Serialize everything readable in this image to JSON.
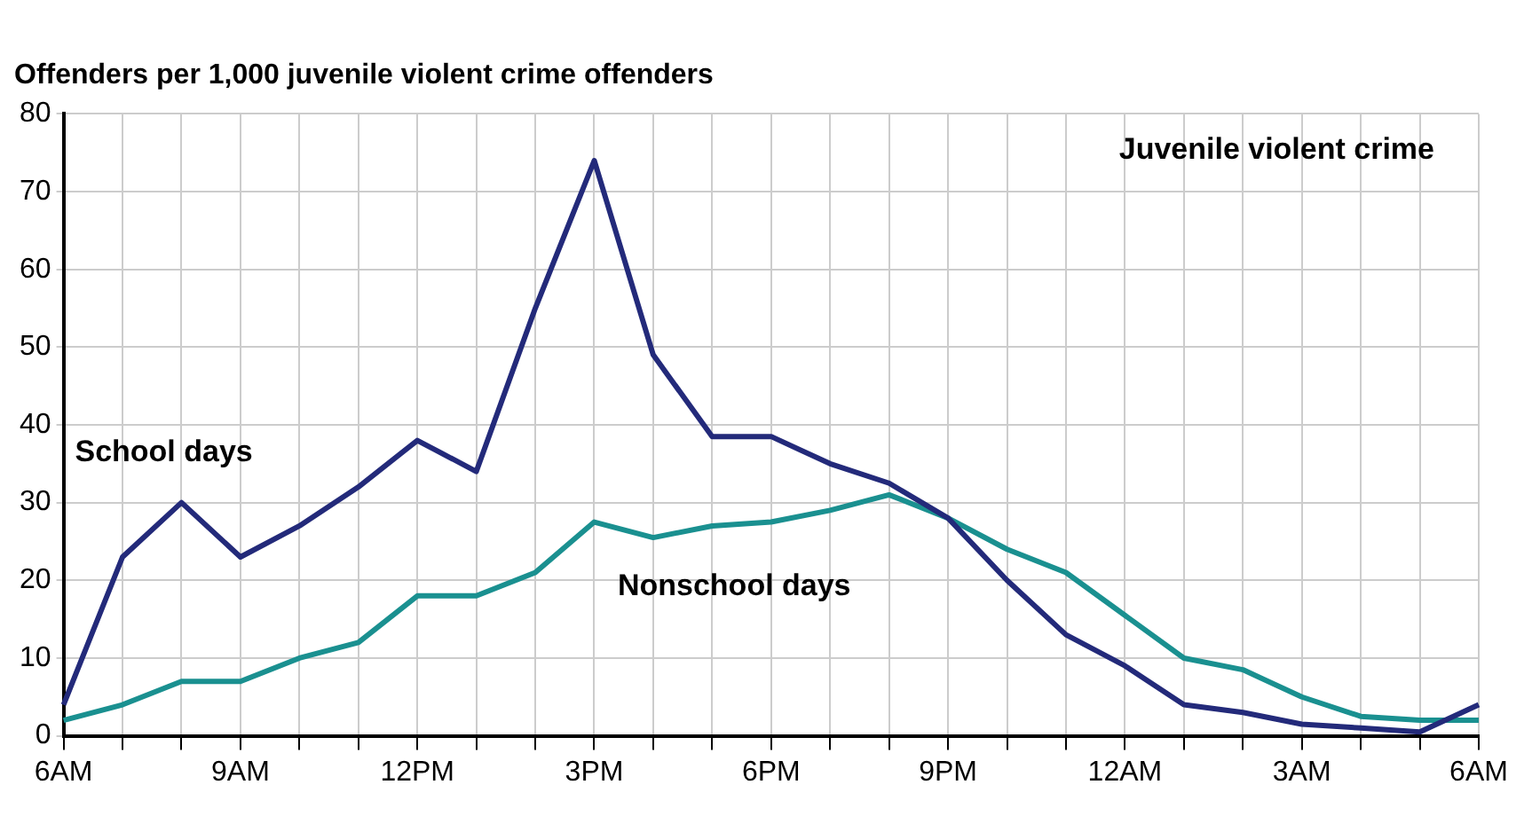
{
  "chart_data": {
    "type": "line",
    "title": "Offenders per 1,000 juvenile violent crime offenders",
    "subtitle": "Juvenile violent crime",
    "categories": [
      "6AM",
      null,
      null,
      "9AM",
      null,
      null,
      "12PM",
      null,
      null,
      "3PM",
      null,
      null,
      "6PM",
      null,
      null,
      "9PM",
      null,
      null,
      "12AM",
      null,
      null,
      "3AM",
      null,
      null,
      "6AM"
    ],
    "series": [
      {
        "name": "School days",
        "color": "#232a7a",
        "values": [
          4,
          23,
          30,
          23,
          27,
          32,
          38,
          34,
          55,
          74,
          49,
          38.5,
          38.5,
          35,
          32.5,
          28,
          20,
          13,
          9,
          4,
          3,
          1.5,
          1,
          0.5,
          4
        ]
      },
      {
        "name": "Nonschool days",
        "color": "#1a9090",
        "values": [
          2,
          4,
          7,
          7,
          10,
          12,
          18,
          18,
          21,
          27.5,
          25.5,
          27,
          27.5,
          29,
          31,
          28,
          24,
          21,
          15.5,
          10,
          8.5,
          5,
          2.5,
          2,
          2
        ]
      }
    ],
    "ylim": [
      0,
      80
    ],
    "yticks": [
      0,
      10,
      20,
      30,
      40,
      50,
      60,
      70,
      80
    ],
    "grid": true,
    "legend": false,
    "marker": "none",
    "line_style": "solid"
  }
}
